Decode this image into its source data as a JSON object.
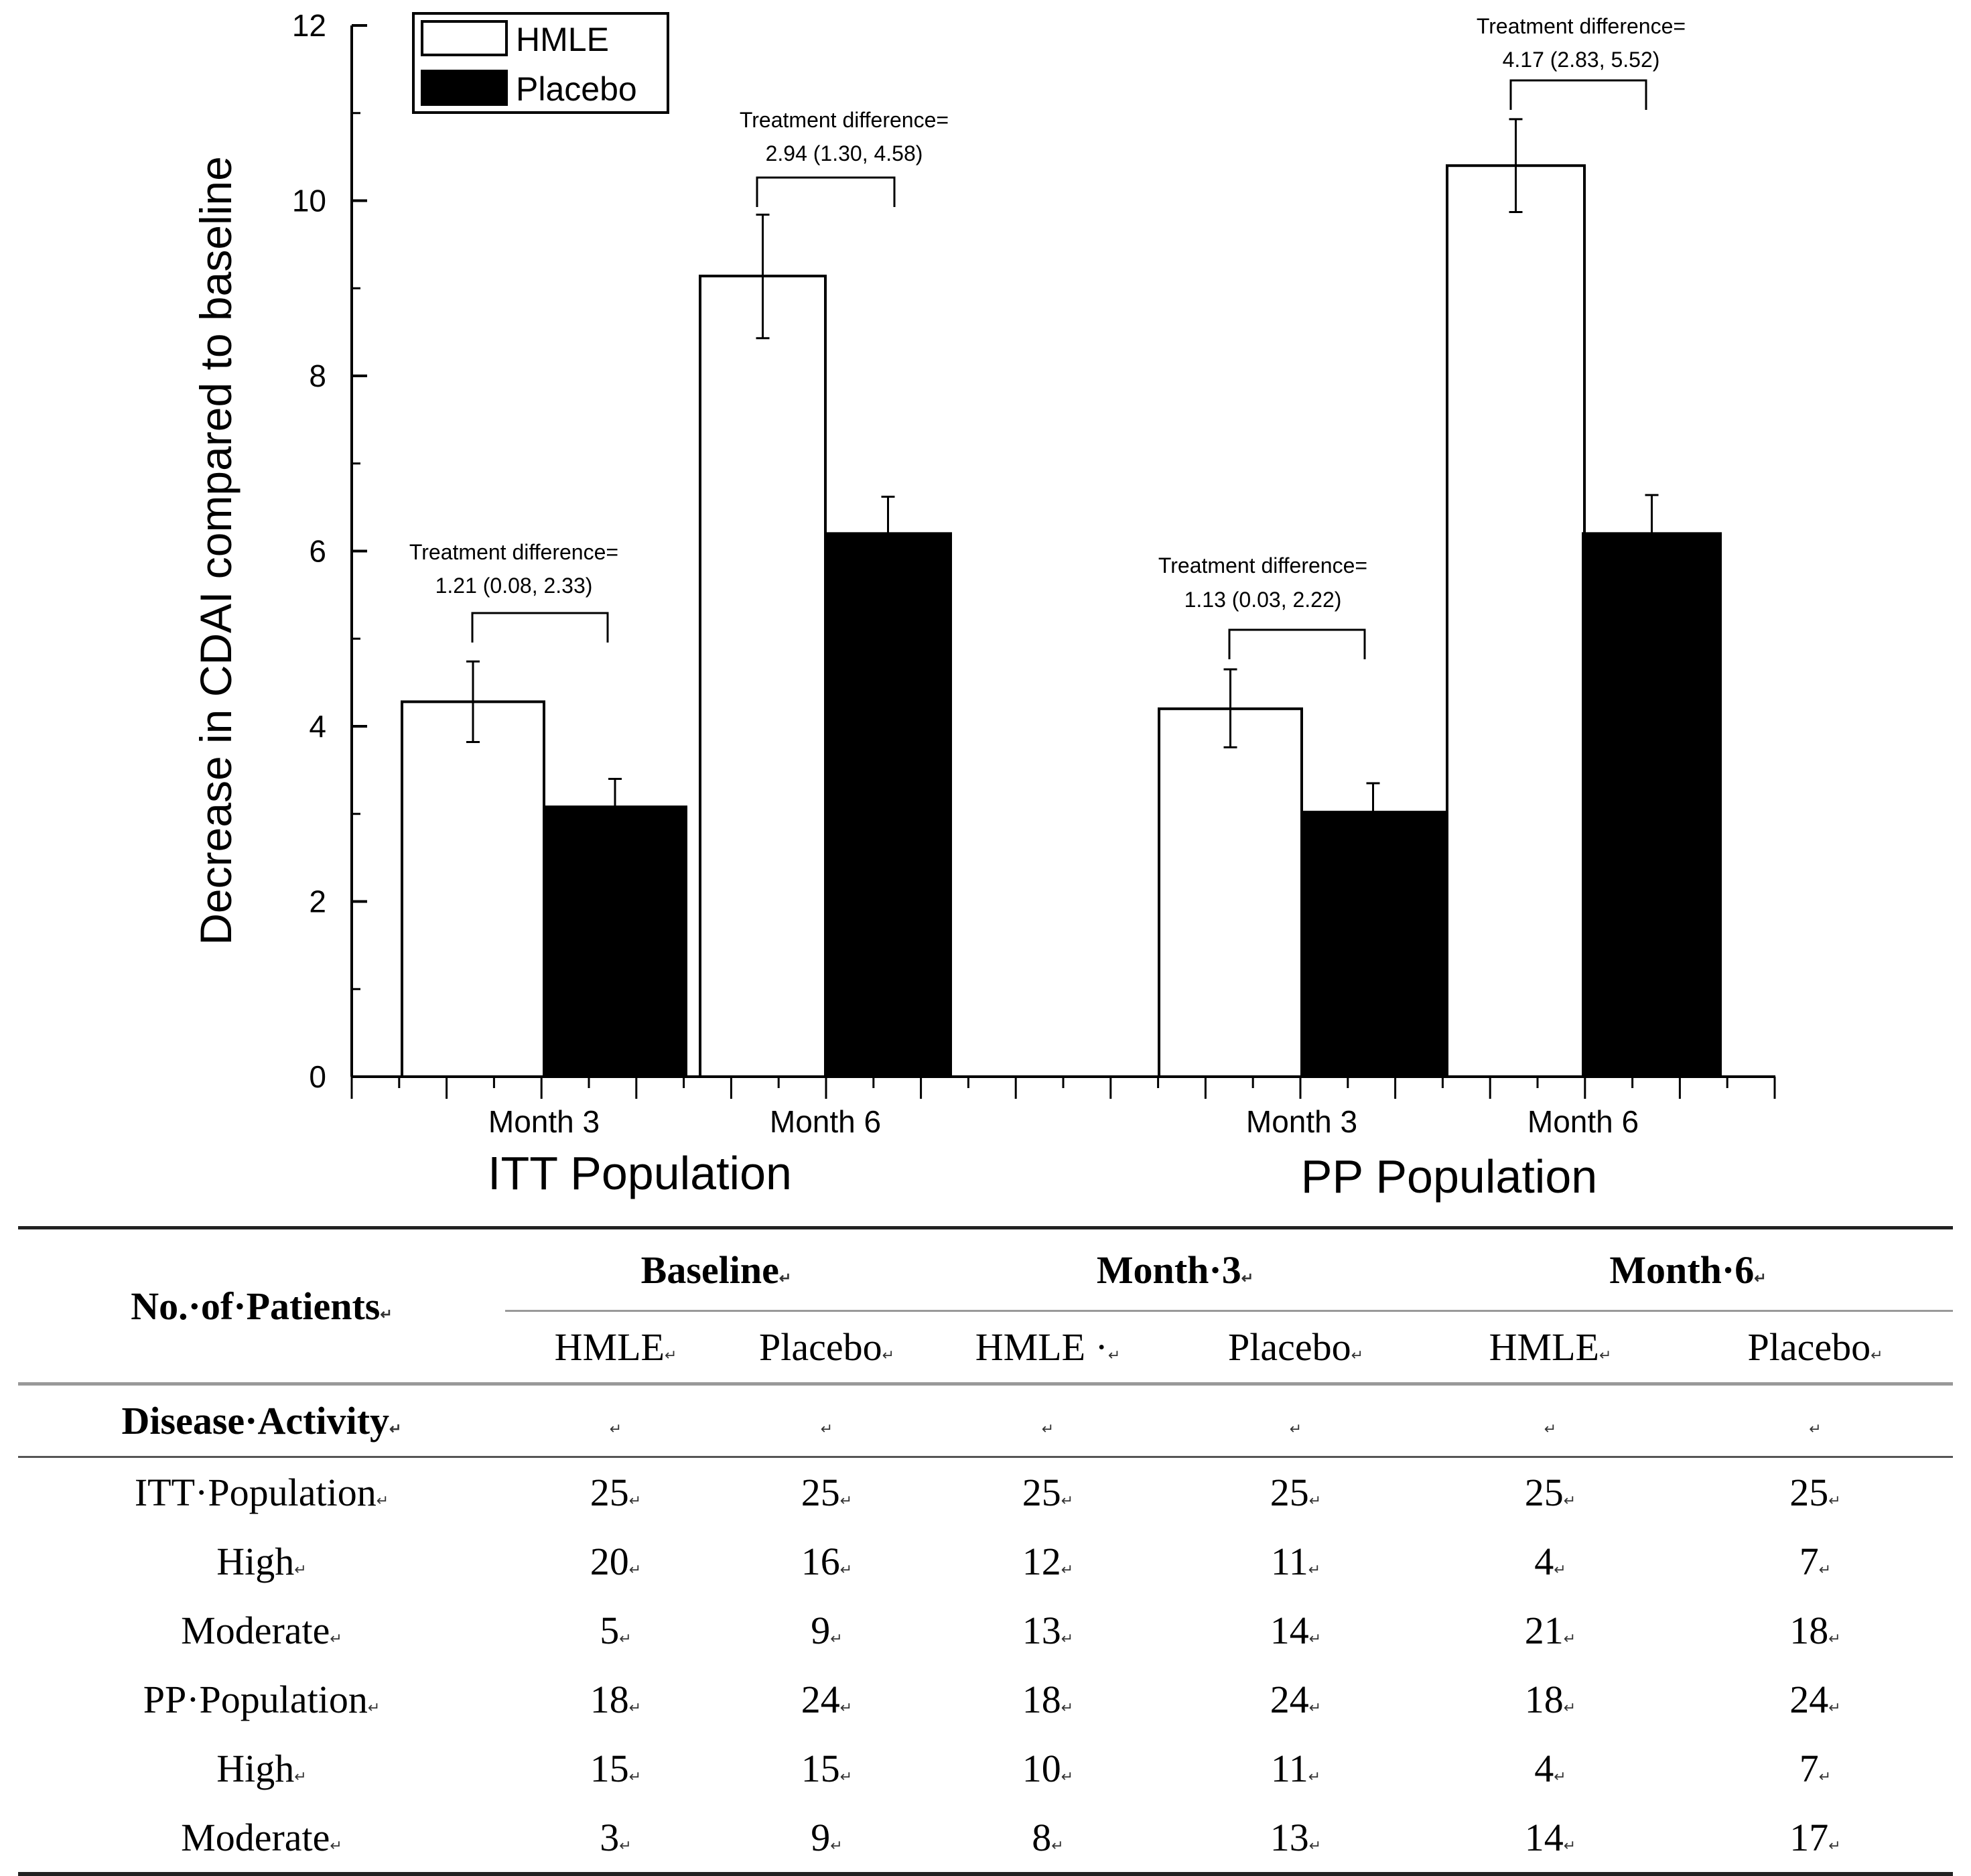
{
  "chart_data": {
    "type": "bar",
    "ylabel": "Decrease in CDAI compared to baseline",
    "ylim": [
      0,
      12
    ],
    "yticks": [
      "0",
      "2",
      "4",
      "6",
      "8",
      "10",
      "12"
    ],
    "groups": [
      {
        "name": "ITT Population",
        "categories": [
          "Month 3",
          "Month 6"
        ]
      },
      {
        "name": "PP Population",
        "categories": [
          "Month 3",
          "Month 6"
        ]
      }
    ],
    "series": [
      {
        "name": "HMLE",
        "color": "#ffffff",
        "values": [
          4.28,
          9.14,
          4.2,
          10.4
        ],
        "errors": [
          [
            3.82,
            4.74
          ],
          [
            8.43,
            9.84
          ],
          [
            3.76,
            4.65
          ],
          [
            9.87,
            10.93
          ]
        ]
      },
      {
        "name": "Placebo",
        "color": "#000000",
        "values": [
          3.08,
          6.2,
          3.02,
          6.2
        ],
        "errors": [
          [
            2.78,
            3.4
          ],
          [
            5.8,
            6.62
          ],
          [
            2.7,
            3.35
          ],
          [
            5.76,
            6.64
          ]
        ]
      }
    ],
    "annotations": [
      {
        "line1": "Treatment difference=",
        "line2": "1.21 (0.08, 2.33)"
      },
      {
        "line1": "Treatment difference=",
        "line2": "2.94 (1.30, 4.58)"
      },
      {
        "line1": "Treatment difference=",
        "line2": "1.13 (0.03, 2.22)"
      },
      {
        "line1": "Treatment difference=",
        "line2": "4.17 (2.83, 5.52)"
      }
    ],
    "legend": [
      {
        "label": "HMLE",
        "color": "#ffffff"
      },
      {
        "label": "Placebo",
        "color": "#000000"
      }
    ],
    "legend_position": "top-left"
  },
  "table": {
    "corner_label": "No.·of·Patients",
    "periods": [
      "Baseline",
      "Month·3",
      "Month·6"
    ],
    "sub_headers": [
      "HMLE",
      "Placebo",
      "HMLE ·",
      "Placebo",
      "HMLE",
      "Placebo"
    ],
    "section_label": "Disease·Activity",
    "para_mark": "↵",
    "rows": [
      {
        "label": "ITT·Population",
        "values": [
          "25",
          "25",
          "25",
          "25",
          "25",
          "25"
        ]
      },
      {
        "label": "High",
        "values": [
          "20",
          "16",
          "12",
          "11",
          "4",
          "7"
        ]
      },
      {
        "label": "Moderate",
        "values": [
          "5",
          "9",
          "13",
          "14",
          "21",
          "18"
        ]
      },
      {
        "label": "PP·Population",
        "values": [
          "18",
          "24",
          "18",
          "24",
          "18",
          "24"
        ]
      },
      {
        "label": "High",
        "values": [
          "15",
          "15",
          "10",
          "11",
          "4",
          "7"
        ]
      },
      {
        "label": "Moderate",
        "values": [
          "3",
          "9",
          "8",
          "13",
          "14",
          "17"
        ]
      }
    ]
  }
}
